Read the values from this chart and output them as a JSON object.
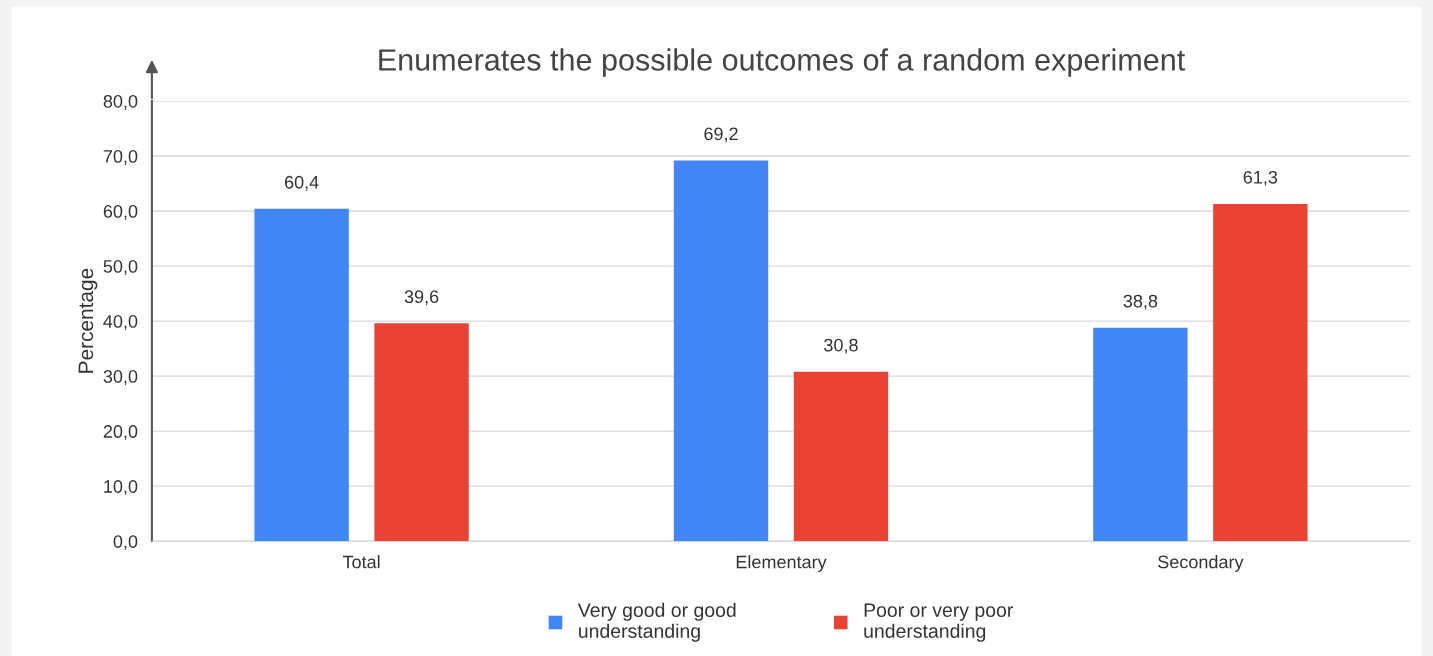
{
  "chart_data": {
    "type": "bar",
    "title": "Enumerates the possible outcomes of a random experiment",
    "ylabel": "Percentage",
    "categories": [
      "Total",
      "Elementary",
      "Secondary"
    ],
    "series": [
      {
        "name": "Very good or good\nunderstanding",
        "color": "#4285f4",
        "values": [
          60.4,
          69.2,
          38.8
        ],
        "value_labels": [
          "60,4",
          "69,2",
          "38,8"
        ]
      },
      {
        "name": "Poor or very poor\nunderstanding",
        "color": "#ea4335",
        "values": [
          39.6,
          30.8,
          61.3
        ],
        "value_labels": [
          "39,6",
          "30,8",
          "61,3"
        ]
      }
    ],
    "ylim": [
      0,
      80
    ],
    "yticks": [
      {
        "value": 0,
        "label": "0,0"
      },
      {
        "value": 10,
        "label": "10,0"
      },
      {
        "value": 20,
        "label": "20,0"
      },
      {
        "value": 30,
        "label": "30,0"
      },
      {
        "value": 40,
        "label": "40,0"
      },
      {
        "value": 50,
        "label": "50,0"
      },
      {
        "value": 60,
        "label": "60,0"
      },
      {
        "value": 70,
        "label": "70,0"
      },
      {
        "value": 80,
        "label": "80,0"
      }
    ],
    "grid": "y",
    "legend": "bottom"
  }
}
